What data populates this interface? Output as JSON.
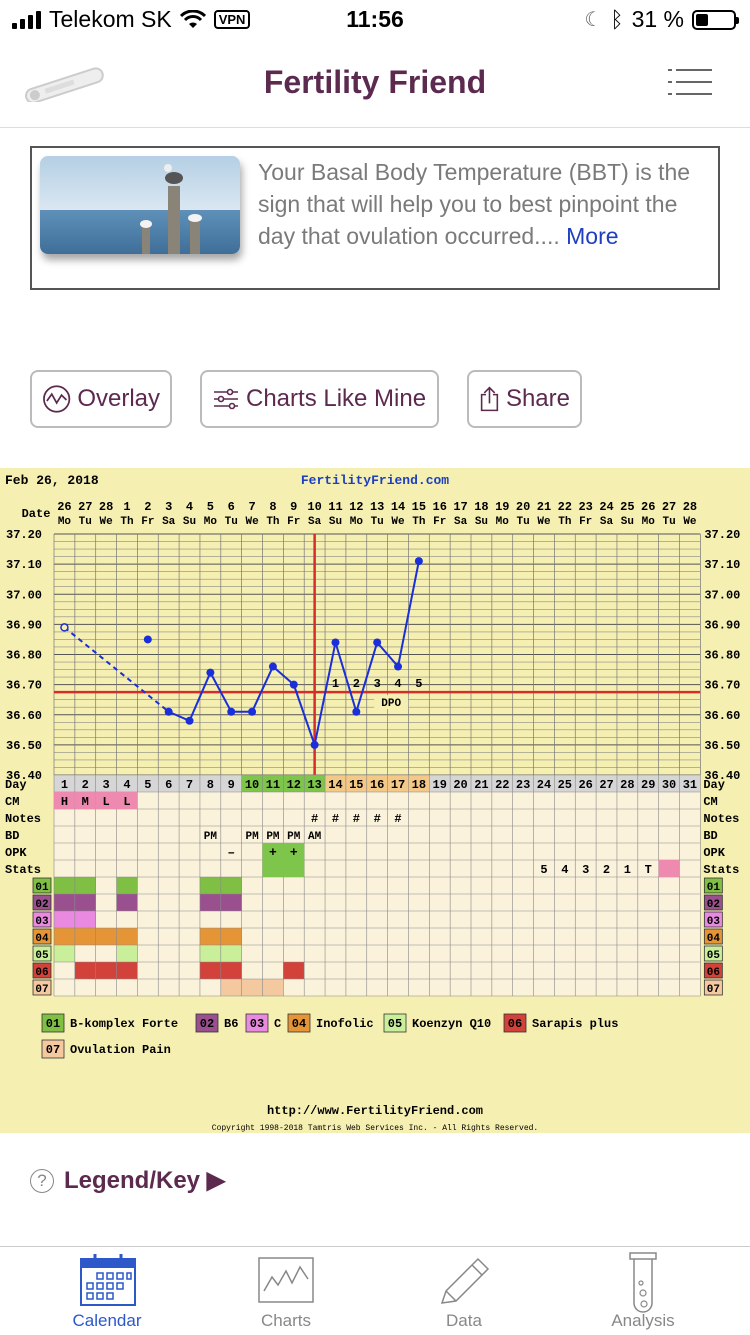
{
  "status_bar": {
    "carrier": "Telekom SK",
    "vpn": "VPN",
    "time": "11:56",
    "battery": "31 %"
  },
  "header": {
    "title": "Fertility Friend"
  },
  "tip": {
    "text": "Your Basal Body Temperature (BBT) is the sign that will help you to best pinpoint the day that ovulation occurred....",
    "more": "More"
  },
  "actions": {
    "overlay": "Overlay",
    "charts_like_mine": "Charts Like Mine",
    "share": "Share"
  },
  "chart_data": {
    "type": "line",
    "start_date": "Feb 26, 2018",
    "site": "FertilityFriend.com",
    "date_label": "Date",
    "dates": [
      "26",
      "27",
      "28",
      "1",
      "2",
      "3",
      "4",
      "5",
      "6",
      "7",
      "8",
      "9",
      "10",
      "11",
      "12",
      "13",
      "14",
      "15",
      "16",
      "17",
      "18",
      "19",
      "20",
      "21",
      "22",
      "23",
      "24",
      "25",
      "26",
      "27",
      "28"
    ],
    "weekdays": [
      "Mo",
      "Tu",
      "We",
      "Th",
      "Fr",
      "Sa",
      "Su",
      "Mo",
      "Tu",
      "We",
      "Th",
      "Fr",
      "Sa",
      "Su",
      "Mo",
      "Tu",
      "We",
      "Th",
      "Fr",
      "Sa",
      "Su",
      "Mo",
      "Tu",
      "We",
      "Th",
      "Fr",
      "Sa",
      "Su",
      "Mo",
      "Tu",
      "We"
    ],
    "y_ticks": [
      "37.20",
      "37.10",
      "37.00",
      "36.90",
      "36.80",
      "36.70",
      "36.60",
      "36.50",
      "36.40"
    ],
    "ylim": [
      36.4,
      37.2
    ],
    "temps": [
      36.89,
      null,
      null,
      null,
      36.85,
      36.61,
      36.58,
      36.74,
      36.61,
      36.61,
      36.76,
      36.7,
      36.5,
      36.84,
      36.61,
      36.84,
      36.76,
      37.11
    ],
    "coverline": 36.675,
    "ovulation_day": 13,
    "dpo": {
      "numbers": [
        "1",
        "2",
        "3",
        "4",
        "5"
      ],
      "label": "DPO"
    },
    "row_labels": [
      "Day",
      "CM",
      "Notes",
      "BD",
      "OPK",
      "Stats",
      "01",
      "02",
      "03",
      "04",
      "05",
      "06",
      "07"
    ],
    "cm": [
      "H",
      "M",
      "L",
      "L"
    ],
    "notes_marks": "#",
    "bd": {
      "8": "PM",
      "10": "PM",
      "11": "PM",
      "12": "PM",
      "13": "AM"
    },
    "opk": {
      "9": "–",
      "11": "+",
      "12": "+"
    },
    "stats": {
      "24": "5",
      "25": "4",
      "26": "3",
      "27": "2",
      "28": "1",
      "29": "T"
    },
    "supplements": [
      {
        "code": "01",
        "name": "B-komplex Forte",
        "color": "#7fbf44",
        "days": [
          1,
          2,
          4,
          8,
          9
        ]
      },
      {
        "code": "02",
        "name": "B6",
        "color": "#9a4f8e",
        "days": [
          1,
          2,
          4,
          8,
          9
        ]
      },
      {
        "code": "03",
        "name": "C",
        "color": "#e98ae0",
        "days": [
          1,
          2
        ]
      },
      {
        "code": "04",
        "name": "Inofolic",
        "color": "#e59436",
        "days": [
          1,
          2,
          3,
          4,
          8,
          9
        ]
      },
      {
        "code": "05",
        "name": "Koenzyn Q10",
        "color": "#c9ef9a",
        "days": [
          1,
          4,
          8,
          9
        ]
      },
      {
        "code": "06",
        "name": "Sarapis plus",
        "color": "#d2413a",
        "days": [
          2,
          3,
          4,
          8,
          9,
          12
        ]
      },
      {
        "code": "07",
        "name": "Ovulation Pain",
        "color": "#f5c9a0",
        "days": [
          9,
          10,
          11
        ]
      }
    ],
    "footer_url": "http://www.FertilityFriend.com",
    "copyright": "Copyright 1998-2018 Tamtris Web Services Inc. - All Rights Reserved."
  },
  "legend_key": "Legend/Key ▶",
  "tabs": [
    {
      "label": "Calendar",
      "icon": "calendar-icon"
    },
    {
      "label": "Charts",
      "icon": "chart-icon"
    },
    {
      "label": "Data",
      "icon": "pencil-icon"
    },
    {
      "label": "Analysis",
      "icon": "test-tube-icon"
    }
  ]
}
